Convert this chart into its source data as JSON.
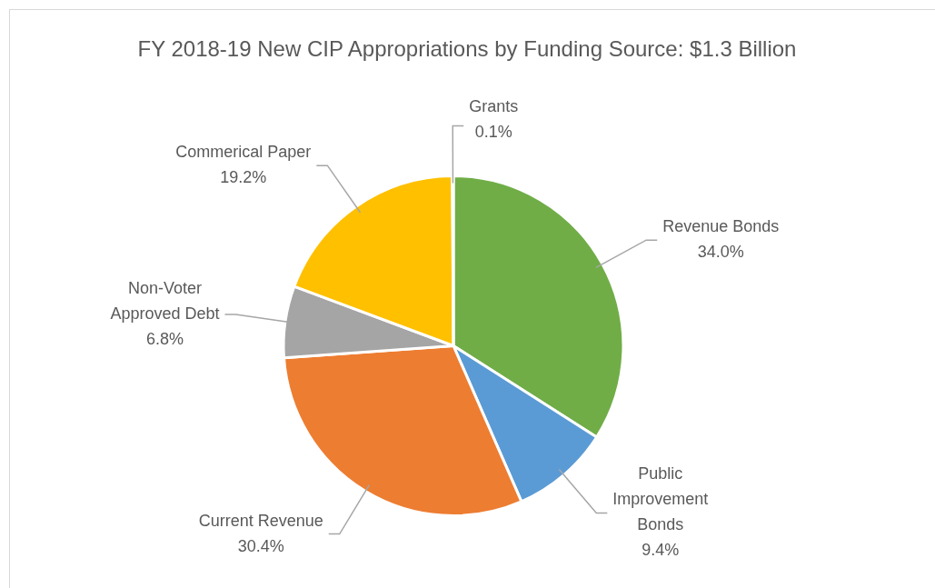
{
  "chart_data": {
    "type": "pie",
    "title": "FY 2018-19 New CIP Appropriations by Funding Source: $1.3 Billion",
    "categories": [
      "Revenue Bonds",
      "Public\nImprovement\nBonds",
      "Current Revenue",
      "Non-Voter\nApproved Debt",
      "Commerical Paper",
      "Grants"
    ],
    "values": [
      34.0,
      9.4,
      30.4,
      6.8,
      19.2,
      0.1
    ],
    "value_labels": [
      "34.0%",
      "9.4%",
      "30.4%",
      "6.8%",
      "19.2%",
      "0.1%"
    ],
    "colors": [
      "#70ad47",
      "#5b9bd5",
      "#ed7d31",
      "#a5a5a5",
      "#ffc000",
      "#264478"
    ],
    "legend": false
  }
}
